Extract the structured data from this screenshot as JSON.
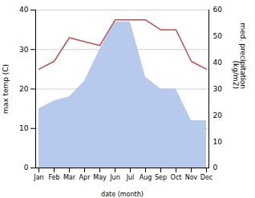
{
  "chart_data": {
    "type": "line",
    "xlabel": "date (month)",
    "ylabel": "max temp (C)",
    "y2label": "med. precipitation\n(kg/m2)",
    "categories": [
      "Jan",
      "Feb",
      "Mar",
      "Apr",
      "May",
      "Jun",
      "Jul",
      "Aug",
      "Sep",
      "Oct",
      "Nov",
      "Dec"
    ],
    "series": [
      {
        "type": "area",
        "color": "#b8c9ee",
        "values": [
          15,
          17,
          18,
          22,
          30,
          37,
          37,
          23,
          20,
          20,
          12,
          12
        ]
      },
      {
        "type": "line",
        "color": "#c0504d",
        "values": [
          25,
          27,
          33,
          32,
          31,
          37.5,
          37.5,
          37.5,
          35,
          35,
          27,
          25
        ]
      }
    ],
    "ylim": [
      0,
      40
    ],
    "yticks": [
      0,
      10,
      20,
      30,
      40
    ],
    "y2lim": [
      0,
      60
    ],
    "y2ticks": [
      0,
      10,
      20,
      30,
      40,
      50,
      60
    ],
    "grid": true
  }
}
